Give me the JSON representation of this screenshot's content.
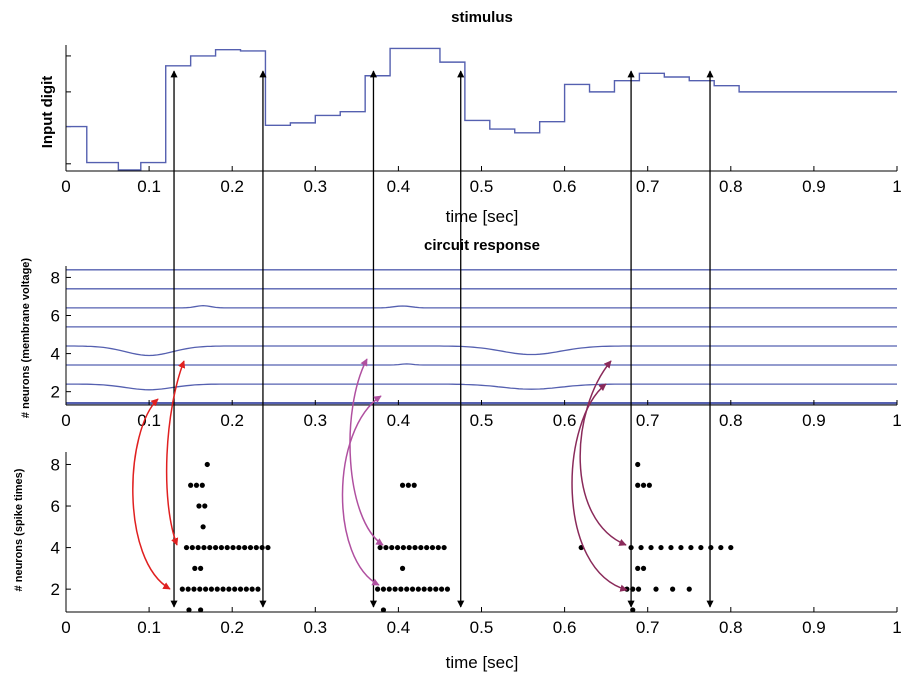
{
  "chart_data": [
    {
      "type": "line",
      "title": "stimulus",
      "xlabel": "time [sec]",
      "ylabel": "Input digit",
      "xlim": [
        0,
        1
      ],
      "ylim": [
        0,
        1
      ],
      "xticks": [
        "0",
        "0.1",
        "0.2",
        "0.3",
        "0.4",
        "0.5",
        "0.6",
        "0.7",
        "0.8",
        "0.9",
        "1"
      ],
      "yticks": [],
      "color": "#5560b0",
      "series": [
        {
          "step_values": [
            [
              0.0,
              0.35
            ],
            [
              0.025,
              0.06
            ],
            [
              0.063,
              0.0
            ],
            [
              0.09,
              0.06
            ],
            [
              0.12,
              0.84
            ],
            [
              0.15,
              0.92
            ],
            [
              0.18,
              0.97
            ],
            [
              0.21,
              0.96
            ],
            [
              0.24,
              0.36
            ],
            [
              0.27,
              0.38
            ],
            [
              0.3,
              0.44
            ],
            [
              0.33,
              0.47
            ],
            [
              0.36,
              0.76
            ],
            [
              0.39,
              0.98
            ],
            [
              0.42,
              0.98
            ],
            [
              0.45,
              0.87
            ],
            [
              0.48,
              0.4
            ],
            [
              0.51,
              0.33
            ],
            [
              0.54,
              0.3
            ],
            [
              0.57,
              0.39
            ],
            [
              0.6,
              0.69
            ],
            [
              0.63,
              0.63
            ],
            [
              0.66,
              0.72
            ],
            [
              0.69,
              0.78
            ],
            [
              0.72,
              0.75
            ],
            [
              0.75,
              0.72
            ],
            [
              0.78,
              0.68
            ],
            [
              0.81,
              0.63
            ],
            [
              1.0,
              0.63
            ]
          ]
        }
      ]
    },
    {
      "type": "line",
      "title": "circuit response",
      "xlabel": "",
      "ylabel": "# neurons (membrane voltage)",
      "xlim": [
        0,
        1
      ],
      "ylim": [
        1.3,
        8.6
      ],
      "xticks": [
        "0",
        "0.1",
        "0.2",
        "0.3",
        "0.4",
        "0.5",
        "0.6",
        "0.7",
        "0.8",
        "0.9",
        "1"
      ],
      "yticks": [
        "2",
        "4",
        "6",
        "8"
      ],
      "ytick_values": [
        2,
        4,
        6,
        8
      ],
      "color": "#5560b0",
      "baselines": [
        1.4,
        2.4,
        3.4,
        4.4,
        5.4,
        6.4,
        7.4,
        8.4
      ]
    },
    {
      "type": "scatter",
      "title": "",
      "xlabel": "time [sec]",
      "ylabel": "# neurons (spike times)",
      "xlim": [
        0,
        1
      ],
      "ylim": [
        0.9,
        8.6
      ],
      "xticks": [
        "0",
        "0.1",
        "0.2",
        "0.3",
        "0.4",
        "0.5",
        "0.6",
        "0.7",
        "0.8",
        "0.9",
        "1"
      ],
      "yticks": [
        "2",
        "4",
        "6",
        "8"
      ],
      "ytick_values": [
        2,
        4,
        6,
        8
      ],
      "point_color": "#000000",
      "rows": [
        {
          "neuron": 1,
          "times": [
            0.148,
            0.162,
            0.382,
            0.682
          ]
        },
        {
          "neuron": 2,
          "times": [
            0.14,
            0.147,
            0.154,
            0.161,
            0.168,
            0.175,
            0.182,
            0.189,
            0.196,
            0.203,
            0.21,
            0.217,
            0.224,
            0.231,
            0.375,
            0.382,
            0.389,
            0.396,
            0.403,
            0.41,
            0.417,
            0.424,
            0.431,
            0.438,
            0.445,
            0.452,
            0.459,
            0.675,
            0.682,
            0.689,
            0.71,
            0.73,
            0.75
          ]
        },
        {
          "neuron": 3,
          "times": [
            0.155,
            0.162,
            0.405,
            0.688,
            0.695
          ]
        },
        {
          "neuron": 4,
          "times": [
            0.145,
            0.152,
            0.159,
            0.166,
            0.173,
            0.18,
            0.187,
            0.194,
            0.201,
            0.208,
            0.215,
            0.222,
            0.229,
            0.236,
            0.243,
            0.378,
            0.385,
            0.392,
            0.399,
            0.406,
            0.413,
            0.42,
            0.427,
            0.434,
            0.441,
            0.448,
            0.455,
            0.62,
            0.68,
            0.692,
            0.704,
            0.716,
            0.728,
            0.74,
            0.752,
            0.764,
            0.776,
            0.788,
            0.8
          ]
        },
        {
          "neuron": 5,
          "times": [
            0.165
          ]
        },
        {
          "neuron": 6,
          "times": [
            0.16,
            0.167
          ]
        },
        {
          "neuron": 7,
          "times": [
            0.15,
            0.157,
            0.164,
            0.405,
            0.412,
            0.419,
            0.688,
            0.695,
            0.702
          ]
        },
        {
          "neuron": 8,
          "times": [
            0.17,
            0.688
          ]
        }
      ]
    }
  ],
  "annotations": {
    "vertical_arrows_x": [
      0.13,
      0.237,
      0.37,
      0.475,
      0.68,
      0.775
    ],
    "arrow_color": "#000000",
    "curved_arrows": [
      {
        "color": "#e02020",
        "group": "first"
      },
      {
        "color": "#b050a0",
        "group": "second"
      },
      {
        "color": "#8a2a5a",
        "group": "third"
      }
    ]
  }
}
